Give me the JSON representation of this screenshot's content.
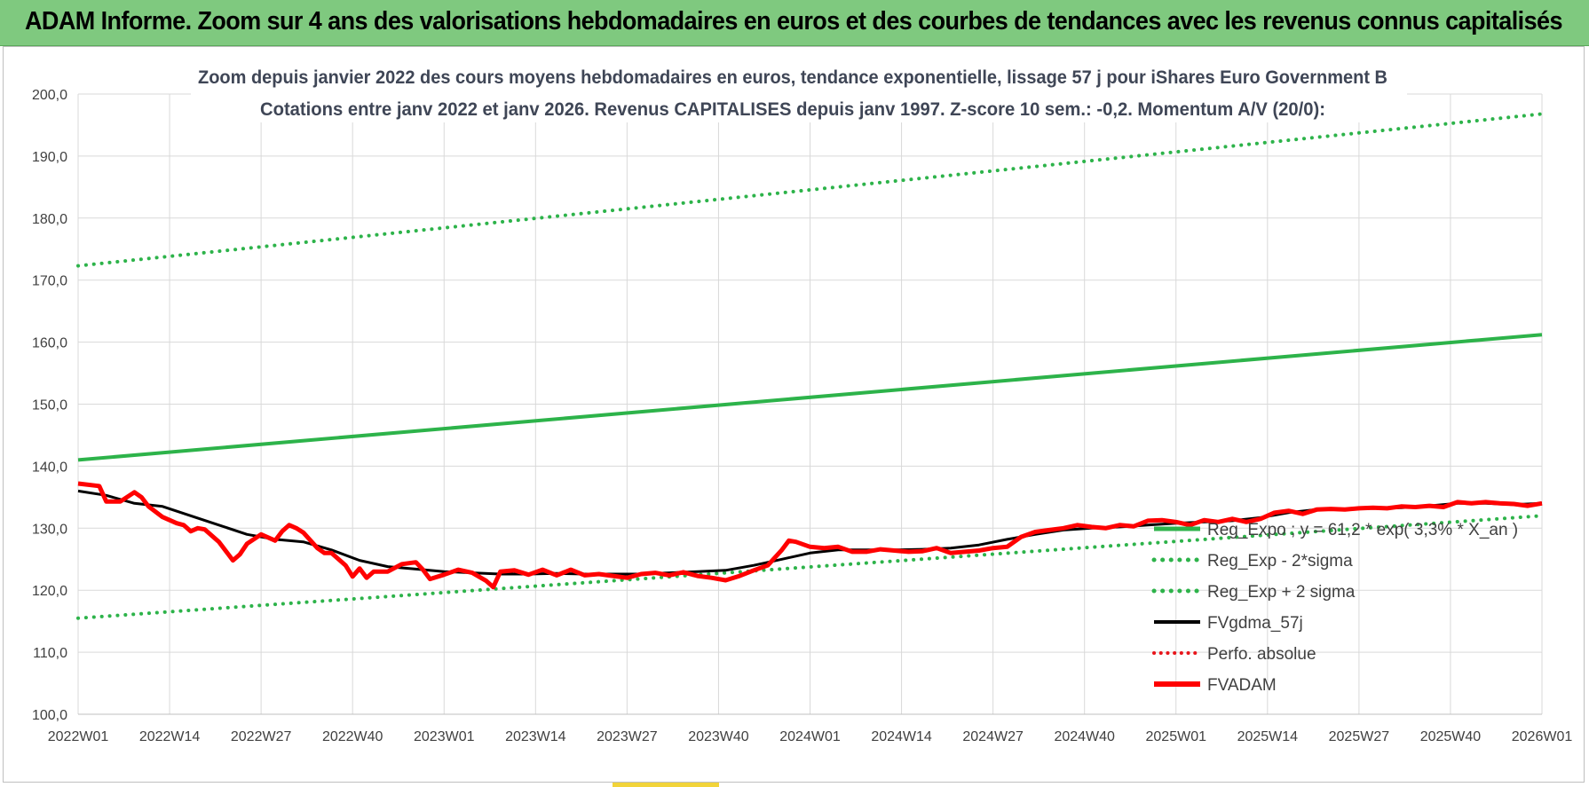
{
  "banner": {
    "title": "ADAM Informe. Zoom sur 4 ans des valorisations hebdomadaires en euros et des courbes de tendances avec les revenus connus capitalisés"
  },
  "chart_data": {
    "type": "line",
    "title_line1": "Zoom depuis janvier 2022 des cours moyens hebdomadaires en euros, tendance exponentielle, lissage 57 j pour iShares Euro Government B",
    "title_line2": "Cotations entre janv 2022 et janv 2026. Revenus CAPITALISES depuis janv 1997. Z-score 10 sem.: -0,2. Momentum A/V (20/0):",
    "ylim": [
      100,
      200
    ],
    "y_ticks": [
      "100,0",
      "110,0",
      "120,0",
      "130,0",
      "140,0",
      "150,0",
      "160,0",
      "170,0",
      "180,0",
      "190,0",
      "200,0"
    ],
    "x_range": [
      0,
      208
    ],
    "x_ticks": [
      {
        "pos": 0,
        "label": "2022W01"
      },
      {
        "pos": 13,
        "label": "2022W14"
      },
      {
        "pos": 26,
        "label": "2022W27"
      },
      {
        "pos": 39,
        "label": "2022W40"
      },
      {
        "pos": 52,
        "label": "2023W01"
      },
      {
        "pos": 65,
        "label": "2023W14"
      },
      {
        "pos": 78,
        "label": "2023W27"
      },
      {
        "pos": 91,
        "label": "2023W40"
      },
      {
        "pos": 104,
        "label": "2024W01"
      },
      {
        "pos": 117,
        "label": "2024W14"
      },
      {
        "pos": 130,
        "label": "2024W27"
      },
      {
        "pos": 143,
        "label": "2024W40"
      },
      {
        "pos": 156,
        "label": "2025W01"
      },
      {
        "pos": 169,
        "label": "2025W14"
      },
      {
        "pos": 182,
        "label": "2025W27"
      },
      {
        "pos": 195,
        "label": "2025W40"
      },
      {
        "pos": 208,
        "label": "2026W01"
      }
    ],
    "series": [
      {
        "name": "Reg_Expo ; y = 61,2 * exp( 3,3% * X_an )",
        "color": "#2db34a",
        "style": "solid",
        "width": 4,
        "x": [
          0,
          208
        ],
        "y": [
          141.0,
          161.2
        ]
      },
      {
        "name": "Reg_Exp - 2*sigma",
        "color": "#2db34a",
        "style": "dotted",
        "width": 4,
        "x": [
          0,
          208
        ],
        "y": [
          115.5,
          132.0
        ]
      },
      {
        "name": "Reg_Exp + 2 sigma",
        "color": "#2db34a",
        "style": "dotted",
        "width": 4,
        "x": [
          0,
          208
        ],
        "y": [
          172.3,
          196.8
        ]
      },
      {
        "name": "FVgdma_57j",
        "color": "#000000",
        "style": "solid",
        "width": 3,
        "x": [
          0,
          4,
          8,
          12,
          16,
          20,
          24,
          28,
          32,
          36,
          40,
          44,
          48,
          52,
          56,
          60,
          64,
          68,
          72,
          76,
          80,
          84,
          88,
          92,
          96,
          100,
          104,
          108,
          112,
          116,
          120,
          124,
          128,
          132,
          136,
          140,
          144,
          148,
          152,
          156,
          160,
          164,
          168,
          172,
          176,
          180,
          184,
          188,
          192,
          196,
          200,
          204,
          208
        ],
        "y": [
          136.0,
          135.3,
          134.0,
          133.5,
          132.0,
          130.5,
          129.0,
          128.2,
          127.8,
          126.5,
          124.8,
          123.8,
          123.4,
          123.0,
          122.8,
          122.6,
          122.6,
          122.7,
          122.6,
          122.6,
          122.6,
          122.8,
          123.0,
          123.2,
          124.0,
          125.0,
          126.0,
          126.5,
          126.5,
          126.5,
          126.6,
          126.8,
          127.3,
          128.2,
          129.0,
          129.7,
          130.0,
          130.2,
          130.5,
          130.8,
          131.0,
          131.2,
          131.7,
          132.5,
          133.0,
          133.0,
          133.2,
          133.3,
          133.6,
          134.0,
          134.0,
          133.8,
          134.0
        ]
      },
      {
        "name": "Perfo. absolue",
        "color": "#e8151b",
        "style": "dotted",
        "width": 3,
        "x": [],
        "y": []
      },
      {
        "name": "FVADAM",
        "color": "#ff0000",
        "style": "solid",
        "width": 5,
        "x": [
          0,
          3,
          4,
          6,
          8,
          9,
          10,
          12,
          14,
          15,
          16,
          17,
          18,
          20,
          22,
          23,
          24,
          26,
          28,
          29,
          30,
          31,
          32,
          34,
          35,
          36,
          38,
          39,
          40,
          41,
          42,
          44,
          46,
          48,
          49,
          50,
          52,
          54,
          56,
          58,
          59,
          60,
          62,
          64,
          66,
          68,
          70,
          72,
          74,
          76,
          78,
          80,
          82,
          84,
          86,
          88,
          90,
          92,
          94,
          96,
          98,
          100,
          101,
          102,
          104,
          106,
          108,
          110,
          112,
          114,
          116,
          118,
          120,
          122,
          124,
          126,
          128,
          130,
          132,
          134,
          136,
          138,
          140,
          142,
          144,
          146,
          148,
          150,
          152,
          154,
          156,
          158,
          160,
          162,
          164,
          166,
          168,
          170,
          172,
          174,
          176,
          178,
          180,
          182,
          184,
          186,
          188,
          190,
          192,
          194,
          196,
          198,
          200,
          202,
          204,
          206,
          208
        ],
        "y": [
          137.2,
          136.8,
          134.3,
          134.3,
          135.8,
          135.0,
          133.5,
          131.8,
          130.8,
          130.5,
          129.5,
          130.0,
          129.8,
          127.8,
          124.8,
          125.8,
          127.5,
          129.0,
          128.0,
          129.5,
          130.5,
          130.0,
          129.3,
          126.8,
          126.0,
          126.0,
          124.0,
          122.2,
          123.5,
          122.0,
          123.0,
          123.0,
          124.2,
          124.5,
          123.3,
          121.8,
          122.5,
          123.3,
          122.8,
          121.5,
          120.5,
          123.0,
          123.2,
          122.5,
          123.3,
          122.4,
          123.3,
          122.4,
          122.6,
          122.3,
          122.0,
          122.6,
          122.8,
          122.4,
          122.9,
          122.3,
          122.0,
          121.6,
          122.3,
          123.2,
          124.0,
          126.5,
          128.0,
          127.8,
          127.0,
          126.8,
          127.0,
          126.2,
          126.2,
          126.6,
          126.4,
          126.2,
          126.3,
          126.8,
          126.0,
          126.2,
          126.4,
          126.8,
          127.0,
          128.6,
          129.4,
          129.7,
          130.0,
          130.5,
          130.2,
          130.0,
          130.5,
          130.3,
          131.2,
          131.3,
          131.0,
          130.5,
          131.3,
          131.0,
          131.5,
          131.0,
          131.5,
          132.5,
          132.8,
          132.3,
          133.0,
          133.1,
          133.0,
          133.2,
          133.3,
          133.2,
          133.5,
          133.4,
          133.6,
          133.4,
          134.2,
          134.0,
          134.2,
          134.0,
          133.9,
          133.6,
          134.0
        ]
      }
    ]
  }
}
